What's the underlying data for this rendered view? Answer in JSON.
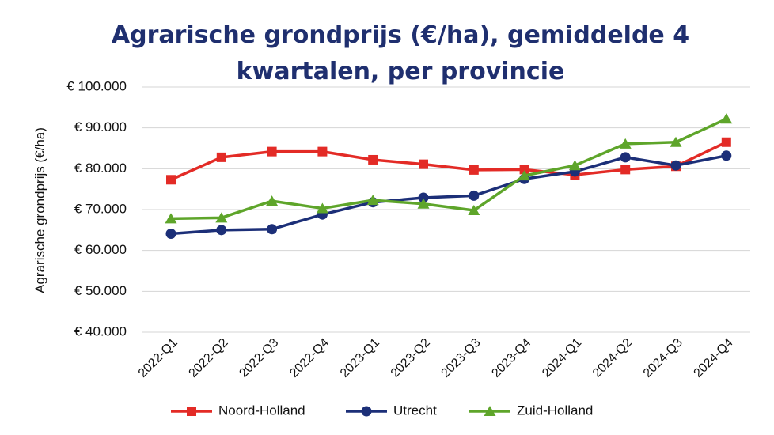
{
  "chart_data": {
    "type": "line",
    "title_lines": [
      "Agrarische grondprijs (€/ha), gemiddelde 4",
      "kwartalen, per provincie"
    ],
    "ylabel": "Agrarische grondprijs (€/ha)",
    "xlabel": "",
    "ylim": [
      40000,
      100000
    ],
    "yticks": [
      40000,
      50000,
      60000,
      70000,
      80000,
      90000,
      100000
    ],
    "ytick_labels": [
      "€ 40.000",
      "€ 50.000",
      "€ 60.000",
      "€ 70.000",
      "€ 80.000",
      "€ 90.000",
      "€ 100.000"
    ],
    "categories": [
      "2022-Q1",
      "2022-Q2",
      "2022-Q3",
      "2022-Q4",
      "2023-Q1",
      "2023-Q2",
      "2023-Q3",
      "2023-Q4",
      "2024-Q1",
      "2024-Q2",
      "2024-Q3",
      "2024-Q4"
    ],
    "grid": true,
    "legend_position": "bottom",
    "series": [
      {
        "name": "Noord-Holland",
        "color": "#e32b26",
        "marker": "square",
        "values": [
          77300,
          82800,
          84200,
          84200,
          82200,
          81100,
          79700,
          79800,
          78500,
          79800,
          80600,
          86500
        ]
      },
      {
        "name": "Utrecht",
        "color": "#1c2f78",
        "marker": "circle",
        "values": [
          64100,
          65000,
          65200,
          68800,
          71800,
          72900,
          73400,
          77500,
          79300,
          82800,
          80800,
          83200
        ]
      },
      {
        "name": "Zuid-Holland",
        "color": "#5ea52a",
        "marker": "triangle",
        "values": [
          67800,
          68000,
          72100,
          70300,
          72300,
          71400,
          69800,
          78300,
          80800,
          86100,
          86500,
          92200
        ]
      }
    ]
  }
}
